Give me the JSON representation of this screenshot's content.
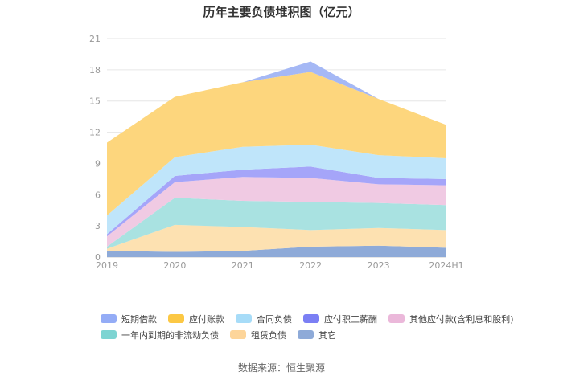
{
  "title": "历年主要负债堆积图（亿元）",
  "source": "数据来源：恒生聚源",
  "chart_data": {
    "type": "area",
    "stacked": true,
    "title": "历年主要负债堆积图（亿元）",
    "x": [
      "2019",
      "2020",
      "2021",
      "2022",
      "2023",
      "2024H1"
    ],
    "ylim": [
      0,
      21
    ],
    "yticks": [
      0,
      3,
      6,
      9,
      12,
      15,
      18,
      21
    ],
    "grid": true,
    "legend_position": "bottom",
    "series": [
      {
        "name": "其它",
        "color": "#8eaad8",
        "values": [
          0.6,
          0.5,
          0.6,
          1.0,
          1.1,
          0.9
        ]
      },
      {
        "name": "租赁负债",
        "color": "#fde1b1",
        "values": [
          0.2,
          2.6,
          2.3,
          1.6,
          1.7,
          1.7
        ]
      },
      {
        "name": "一年内到期的非流动负债",
        "color": "#a9e2e1",
        "values": [
          0.2,
          2.6,
          2.5,
          2.7,
          2.4,
          2.4
        ]
      },
      {
        "name": "其他应付款(含利息和股利)",
        "color": "#f0cae3",
        "values": [
          1.0,
          1.5,
          2.3,
          2.3,
          1.8,
          1.9
        ]
      },
      {
        "name": "应付职工薪酬",
        "color": "#a5a5f9",
        "values": [
          0.2,
          0.6,
          0.7,
          1.1,
          0.6,
          0.6
        ]
      },
      {
        "name": "合同负债",
        "color": "#bfe5fa",
        "values": [
          1.8,
          1.8,
          2.2,
          2.1,
          2.2,
          2.0
        ]
      },
      {
        "name": "应付账款",
        "color": "#fdd67d",
        "values": [
          7.0,
          5.8,
          6.2,
          7.0,
          5.4,
          3.2
        ]
      },
      {
        "name": "短期借款",
        "color": "#a5b8f5",
        "values": [
          0.0,
          0.0,
          0.0,
          1.0,
          0.0,
          0.0
        ]
      }
    ]
  },
  "legend": [
    {
      "name": "短期借款",
      "color": "#94acf6"
    },
    {
      "name": "应付账款",
      "color": "#fcc844"
    },
    {
      "name": "合同负债",
      "color": "#a7dcf8"
    },
    {
      "name": "应付职工薪酬",
      "color": "#7b7ff4"
    },
    {
      "name": "其他应付款(含利息和股利)",
      "color": "#ebb8da"
    },
    {
      "name": "一年内到期的非流动负债",
      "color": "#7dd4d2"
    },
    {
      "name": "租赁负债",
      "color": "#fdd59a"
    },
    {
      "name": "其它",
      "color": "#8eaad8"
    }
  ]
}
